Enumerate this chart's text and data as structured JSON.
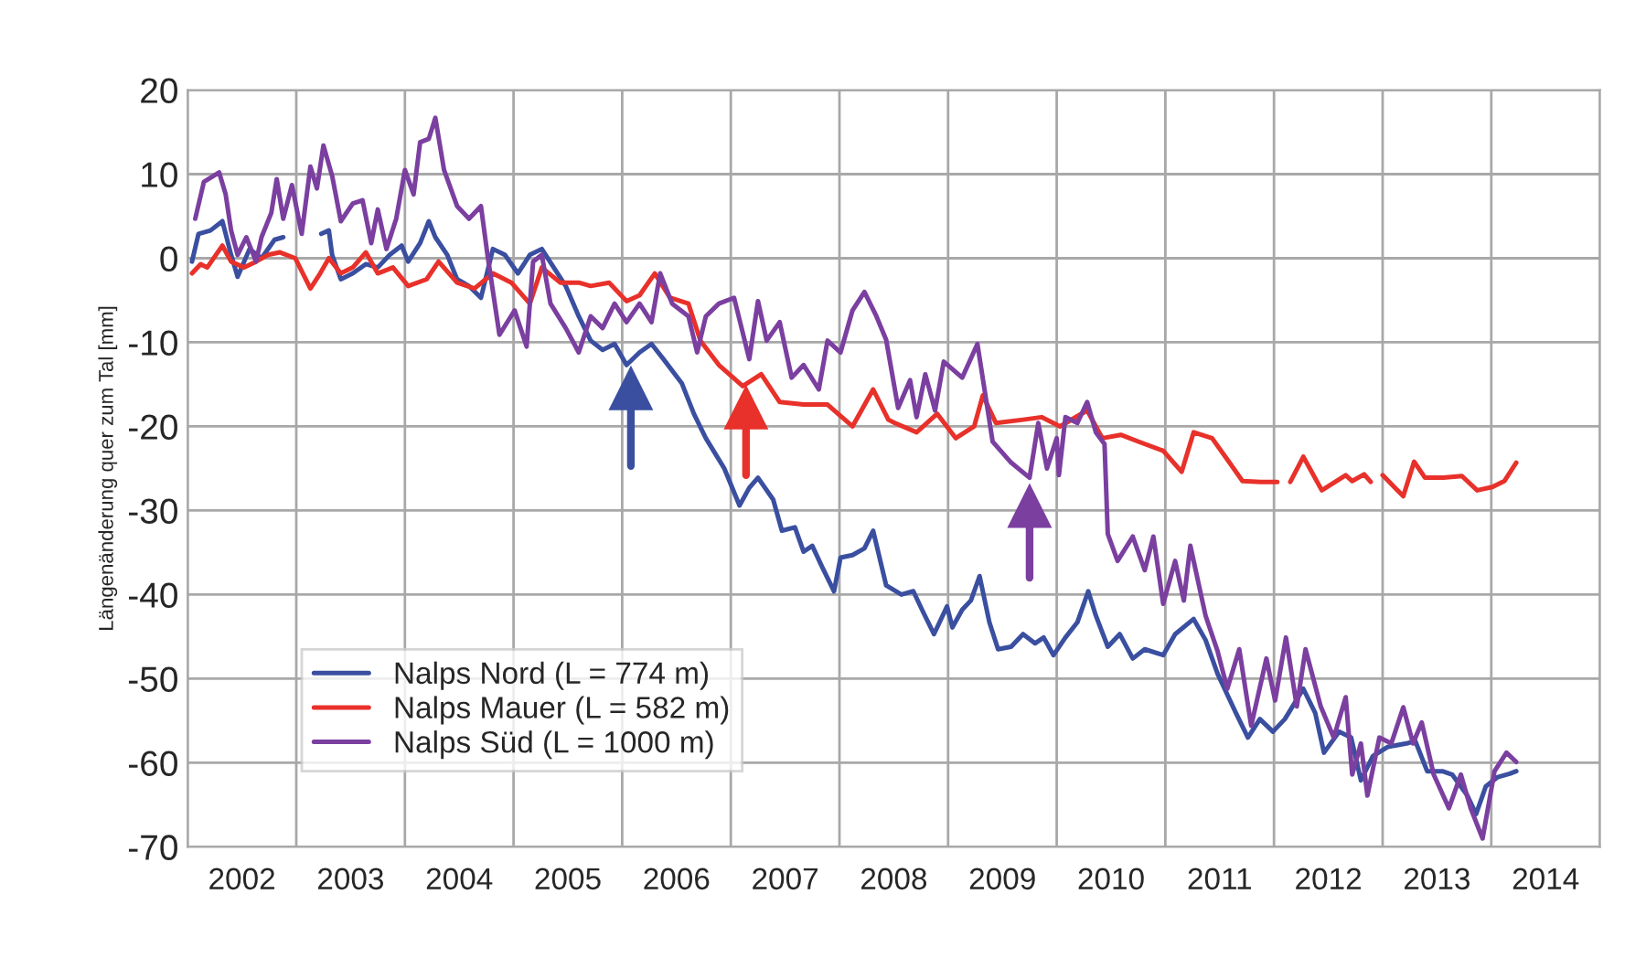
{
  "chart_data": {
    "type": "line",
    "ylabel": "Längenänderung quer zum Tal [mm]",
    "xlim": [
      2002,
      2015
    ],
    "ylim": [
      -70,
      20
    ],
    "yticks": [
      -70,
      -60,
      -50,
      -40,
      -30,
      -20,
      -10,
      0,
      10,
      20
    ],
    "xticks": [
      {
        "value": 2002,
        "label": null
      },
      {
        "value": 2002.5,
        "label": "2002"
      },
      {
        "value": 2003,
        "label": null
      },
      {
        "value": 2003.5,
        "label": "2003"
      },
      {
        "value": 2004,
        "label": null
      },
      {
        "value": 2004.5,
        "label": "2004"
      },
      {
        "value": 2005,
        "label": null
      },
      {
        "value": 2005.5,
        "label": "2005"
      },
      {
        "value": 2006,
        "label": null
      },
      {
        "value": 2006.5,
        "label": "2006"
      },
      {
        "value": 2007,
        "label": null
      },
      {
        "value": 2007.5,
        "label": "2007"
      },
      {
        "value": 2008,
        "label": null
      },
      {
        "value": 2008.5,
        "label": "2008"
      },
      {
        "value": 2009,
        "label": null
      },
      {
        "value": 2009.5,
        "label": "2009"
      },
      {
        "value": 2010,
        "label": null
      },
      {
        "value": 2010.5,
        "label": "2010"
      },
      {
        "value": 2011,
        "label": null
      },
      {
        "value": 2011.5,
        "label": "2011"
      },
      {
        "value": 2012,
        "label": null
      },
      {
        "value": 2012.5,
        "label": "2012"
      },
      {
        "value": 2013,
        "label": null
      },
      {
        "value": 2013.5,
        "label": "2013"
      },
      {
        "value": 2014,
        "label": null
      },
      {
        "value": 2014.5,
        "label": "2014"
      },
      {
        "value": 2015,
        "label": null
      }
    ],
    "grid": true,
    "legend": "bottom left",
    "marker": "none",
    "line_style": "solid",
    "series": [
      {
        "name": "Nalps Nord (L = 774 m)",
        "color": "#3a4fa0",
        "x": [
          2002.04,
          2002.1,
          2002.21,
          2002.32,
          2002.4,
          2002.46,
          2002.57,
          2002.68,
          2002.8,
          2002.88,
          2003.0,
          2003.23,
          2003.3,
          2003.33,
          2003.41,
          2003.52,
          2003.64,
          2003.75,
          2003.86,
          2003.97,
          2004.03,
          2004.14,
          2004.22,
          2004.28,
          2004.39,
          2004.48,
          2004.59,
          2004.7,
          2004.81,
          2004.92,
          2005.04,
          2005.15,
          2005.26,
          2005.37,
          2005.48,
          2005.6,
          2005.71,
          2005.82,
          2005.93,
          2006.04,
          2006.16,
          2006.27,
          2006.38,
          2006.55,
          2006.66,
          2006.77,
          2006.94,
          2007.08,
          2007.17,
          2007.25,
          2007.39,
          2007.47,
          2007.59,
          2007.67,
          2007.75,
          2007.84,
          2007.95,
          2008.01,
          2008.12,
          2008.23,
          2008.31,
          2008.43,
          2008.57,
          2008.68,
          2008.76,
          2008.87,
          2008.99,
          2009.04,
          2009.13,
          2009.21,
          2009.29,
          2009.38,
          2009.46,
          2009.58,
          2009.69,
          2009.8,
          2009.88,
          2009.97,
          2010.08,
          2010.19,
          2010.29,
          2010.36,
          2010.47,
          2010.58,
          2010.7,
          2010.81,
          2010.98,
          2011.09,
          2011.26,
          2011.37,
          2011.48,
          2011.65,
          2011.76,
          2011.87,
          2011.99,
          2012.1,
          2012.27,
          2012.38,
          2012.46,
          2012.6,
          2012.71,
          2012.8,
          2012.91,
          2013.05,
          2013.22,
          2013.3,
          2013.41,
          2013.55,
          2013.64,
          2013.78,
          2013.86,
          2013.95,
          2014.06,
          2014.17,
          2014.23
        ],
        "values": [
          -0.4,
          2.9,
          3.3,
          4.4,
          0.4,
          -2.2,
          1.1,
          0,
          2.2,
          2.5,
          null,
          2.9,
          3.3,
          0.4,
          -2.5,
          -1.8,
          -0.7,
          -1.1,
          0.4,
          1.5,
          -0.4,
          1.8,
          4.4,
          2.5,
          0.4,
          -2.5,
          -3.3,
          -4.7,
          1.1,
          0.4,
          -1.8,
          0.4,
          1.1,
          -1.1,
          -3.3,
          -6.9,
          -9.8,
          -10.9,
          -10.2,
          -12.7,
          -11.2,
          -10.2,
          -12,
          -14.9,
          -18.5,
          -21.4,
          -25,
          -29.4,
          -27.3,
          -26.1,
          -28.7,
          -32.4,
          -32,
          -34.9,
          -34.2,
          -36.7,
          -39.6,
          -35.6,
          -35.3,
          -34.5,
          -32.4,
          -38.9,
          -40,
          -39.6,
          -41.8,
          -44.7,
          -41.4,
          -43.9,
          -41.8,
          -40.7,
          -37.8,
          -43.3,
          -46.5,
          -46.2,
          -44.7,
          -45.8,
          -45.1,
          -47.2,
          -45.1,
          -43.3,
          -39.6,
          -42.5,
          -46.2,
          -44.7,
          -47.6,
          -46.5,
          -47.2,
          -44.7,
          -42.9,
          -45.4,
          -49.4,
          -54.1,
          -57,
          -54.8,
          -56.3,
          -54.8,
          -51.2,
          -54.1,
          -58.8,
          -56.3,
          -57,
          -62.1,
          -59.2,
          -58.1,
          -57.7,
          -57.4,
          -61,
          -61,
          -61.4,
          -63.9,
          -66.1,
          -62.8,
          -61.7,
          -61.3,
          -61
        ]
      },
      {
        "name": "Nalps Mauer (L = 582 m)",
        "color": "#e8312a",
        "x": [
          2002.04,
          2002.12,
          2002.18,
          2002.32,
          2002.4,
          2002.52,
          2002.63,
          2002.74,
          2002.85,
          2002.99,
          2003.13,
          2003.22,
          2003.3,
          2003.41,
          2003.52,
          2003.64,
          2003.75,
          2003.89,
          2004.03,
          2004.2,
          2004.31,
          2004.48,
          2004.64,
          2004.81,
          2004.98,
          2005.15,
          2005.26,
          2005.43,
          2005.6,
          2005.71,
          2005.88,
          2006.04,
          2006.16,
          2006.3,
          2006.44,
          2006.61,
          2006.72,
          2006.89,
          2007.11,
          2007.28,
          2007.45,
          2007.67,
          2007.89,
          2008.12,
          2008.31,
          2008.45,
          2008.51,
          2008.71,
          2008.9,
          2009.07,
          2009.24,
          2009.32,
          2009.44,
          2009.69,
          2009.86,
          2010.03,
          2010.28,
          2010.42,
          2010.59,
          2010.75,
          2010.98,
          2011.15,
          2011.26,
          2011.43,
          2011.59,
          2011.71,
          2011.88,
          2012.03,
          2012.08,
          2012.15,
          2012.27,
          2012.44,
          2012.66,
          2012.72,
          2012.83,
          2012.89,
          2012.95,
          2013.0,
          2013.19,
          2013.29,
          2013.39,
          2013.56,
          2013.73,
          2013.87,
          2014.01,
          2014.12,
          2014.23
        ],
        "values": [
          -1.8,
          -0.7,
          -1.1,
          1.5,
          -0.4,
          -1.1,
          -0.4,
          0.4,
          0.7,
          0,
          -3.6,
          -1.8,
          0,
          -1.8,
          -1.1,
          0.7,
          -1.8,
          -1.1,
          -3.3,
          -2.5,
          -0.4,
          -2.9,
          -3.6,
          -1.8,
          -2.9,
          -5.4,
          -1.1,
          -2.9,
          -2.9,
          -3.3,
          -2.9,
          -5.1,
          -4.4,
          -1.8,
          -4.7,
          -5.4,
          -9.8,
          -12.7,
          -15.2,
          -13.8,
          -17.1,
          -17.4,
          -17.4,
          -20,
          -15.6,
          -19.2,
          -19.6,
          -20.7,
          -18.5,
          -21.4,
          -20,
          -16.3,
          -19.6,
          -19.2,
          -18.9,
          -20,
          -18.1,
          -21.4,
          -21,
          -21.8,
          -22.9,
          -25.4,
          -20.7,
          -21.4,
          -24.3,
          -26.5,
          -26.6,
          -26.6,
          null,
          -26.6,
          -23.6,
          -27.6,
          -25.8,
          -26.5,
          -25.7,
          -26.6,
          null,
          -25.8,
          -28.3,
          -24.2,
          -26.1,
          -26.1,
          -25.9,
          -27.6,
          -27.2,
          -26.5,
          -24.3
        ]
      },
      {
        "name": "Nalps Süd (L = 1000 m)",
        "color": "#7b3fa0",
        "x": [
          2002.07,
          2002.15,
          2002.29,
          2002.35,
          2002.4,
          2002.46,
          2002.54,
          2002.63,
          2002.68,
          2002.77,
          2002.82,
          2002.88,
          2002.96,
          2003.05,
          2003.13,
          2003.19,
          2003.25,
          2003.33,
          2003.41,
          2003.52,
          2003.61,
          2003.69,
          2003.75,
          2003.83,
          2003.92,
          2004.0,
          2004.08,
          2004.14,
          2004.22,
          2004.28,
          2004.36,
          2004.48,
          2004.59,
          2004.7,
          2004.76,
          2004.87,
          2005.01,
          2005.12,
          2005.18,
          2005.26,
          2005.34,
          2005.48,
          2005.6,
          2005.71,
          2005.82,
          2005.93,
          2006.04,
          2006.16,
          2006.27,
          2006.35,
          2006.46,
          2006.61,
          2006.69,
          2006.77,
          2006.89,
          2007.03,
          2007.17,
          2007.25,
          2007.33,
          2007.45,
          2007.56,
          2007.67,
          2007.81,
          2007.89,
          2008.01,
          2008.12,
          2008.23,
          2008.34,
          2008.43,
          2008.54,
          2008.65,
          2008.71,
          2008.79,
          2008.88,
          2008.96,
          2009.13,
          2009.27,
          2009.41,
          2009.58,
          2009.75,
          2009.83,
          2009.91,
          2010.0,
          2010.02,
          2010.08,
          2010.19,
          2010.28,
          2010.36,
          2010.44,
          2010.47,
          2010.56,
          2010.7,
          2010.81,
          2010.89,
          2010.98,
          2011.09,
          2011.17,
          2011.23,
          2011.37,
          2011.48,
          2011.57,
          2011.68,
          2011.79,
          2011.93,
          2012.01,
          2012.11,
          2012.21,
          2012.29,
          2012.43,
          2012.55,
          2012.66,
          2012.72,
          2012.8,
          2012.86,
          2012.97,
          2013.08,
          2013.19,
          2013.28,
          2013.36,
          2013.47,
          2013.61,
          2013.72,
          2013.81,
          2013.92,
          2014.03,
          2014.14,
          2014.23
        ],
        "values": [
          4.7,
          9.1,
          10.2,
          7.6,
          3.3,
          0.4,
          2.5,
          -0.4,
          2.5,
          5.4,
          9.4,
          4.7,
          8.7,
          2.9,
          10.9,
          8.3,
          13.4,
          9.8,
          4.4,
          6.5,
          6.9,
          1.8,
          5.8,
          1.1,
          4.7,
          10.5,
          7.6,
          13.8,
          14.2,
          16.7,
          10.5,
          6.2,
          4.7,
          6.2,
          0.4,
          -9.1,
          -6.2,
          -10.5,
          -0.4,
          0.4,
          -5.4,
          -8.3,
          -11.2,
          -6.9,
          -8.3,
          -5.4,
          -7.6,
          -5.4,
          -7.6,
          -1.8,
          -5.4,
          -6.9,
          -11.2,
          -6.9,
          -5.4,
          -4.7,
          -12,
          -5.1,
          -9.8,
          -7.6,
          -14.2,
          -12.7,
          -15.6,
          -9.8,
          -11.2,
          -6.2,
          -4,
          -6.9,
          -9.7,
          -17.8,
          -14.5,
          -18.9,
          -13.8,
          -18.1,
          -12.3,
          -14.2,
          -10.2,
          -21.8,
          -24.3,
          -26.1,
          -19.6,
          -25,
          -21.4,
          -25.8,
          -18.9,
          -19.6,
          -17.1,
          -20.7,
          -22.1,
          -32.8,
          -36,
          -33.1,
          -37.1,
          -33.1,
          -41.1,
          -36,
          -40.7,
          -34.2,
          -42.5,
          -46.7,
          -51.2,
          -46.5,
          -55.6,
          -47.6,
          -52.6,
          -45.1,
          -53.3,
          -46.5,
          -53.3,
          -57,
          -52.2,
          -61.4,
          -57.7,
          -63.9,
          -57,
          -57.7,
          -53.4,
          -57.7,
          -55.2,
          -61.4,
          -65.4,
          -61.4,
          -65.4,
          -69,
          -61,
          -58.8,
          -59.9
        ]
      },
      {
        "color": "#3a4fa0",
        "marker": "triangle",
        "x": [
          2006.08,
          2006.08
        ],
        "values": [
          -24.7,
          -15.5
        ]
      },
      {
        "color": "#e8312a",
        "marker": "triangle",
        "x": [
          2007.14,
          2007.14
        ],
        "values": [
          -25.8,
          -17.8
        ]
      },
      {
        "color": "#7b3fa0",
        "marker": "triangle",
        "x": [
          2009.75,
          2009.75
        ],
        "values": [
          -38,
          -29.5
        ]
      }
    ]
  }
}
